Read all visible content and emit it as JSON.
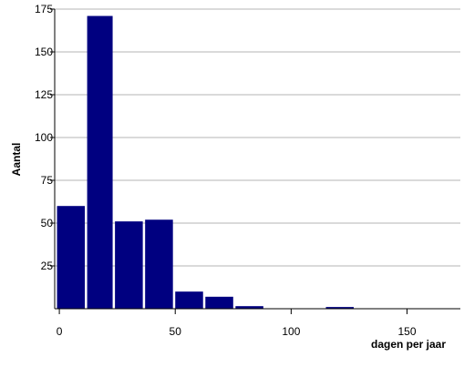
{
  "chart_data": {
    "type": "bar",
    "title": "",
    "xlabel": "dagen per jaar",
    "ylabel": "Aantal",
    "xlim": [
      -2,
      173
    ],
    "ylim": [
      0,
      175
    ],
    "x_ticks": [
      0,
      50,
      100,
      150
    ],
    "y_ticks": [
      25,
      50,
      75,
      100,
      125,
      150,
      175
    ],
    "grid": true,
    "bar_color": "#000080",
    "bins": [
      {
        "x0": -1,
        "x1": 11,
        "value": 60
      },
      {
        "x0": 12,
        "x1": 23,
        "value": 171
      },
      {
        "x0": 24,
        "x1": 36,
        "value": 51
      },
      {
        "x0": 37,
        "x1": 49,
        "value": 52
      },
      {
        "x0": 50,
        "x1": 62,
        "value": 10
      },
      {
        "x0": 63,
        "x1": 75,
        "value": 7
      },
      {
        "x0": 76,
        "x1": 88,
        "value": 1.5
      },
      {
        "x0": 89,
        "x1": 101,
        "value": 0
      },
      {
        "x0": 102,
        "x1": 114,
        "value": 0
      },
      {
        "x0": 115,
        "x1": 127,
        "value": 1
      },
      {
        "x0": 128,
        "x1": 140,
        "value": 0
      },
      {
        "x0": 141,
        "x1": 153,
        "value": 0
      },
      {
        "x0": 154,
        "x1": 166,
        "value": 0
      }
    ]
  }
}
